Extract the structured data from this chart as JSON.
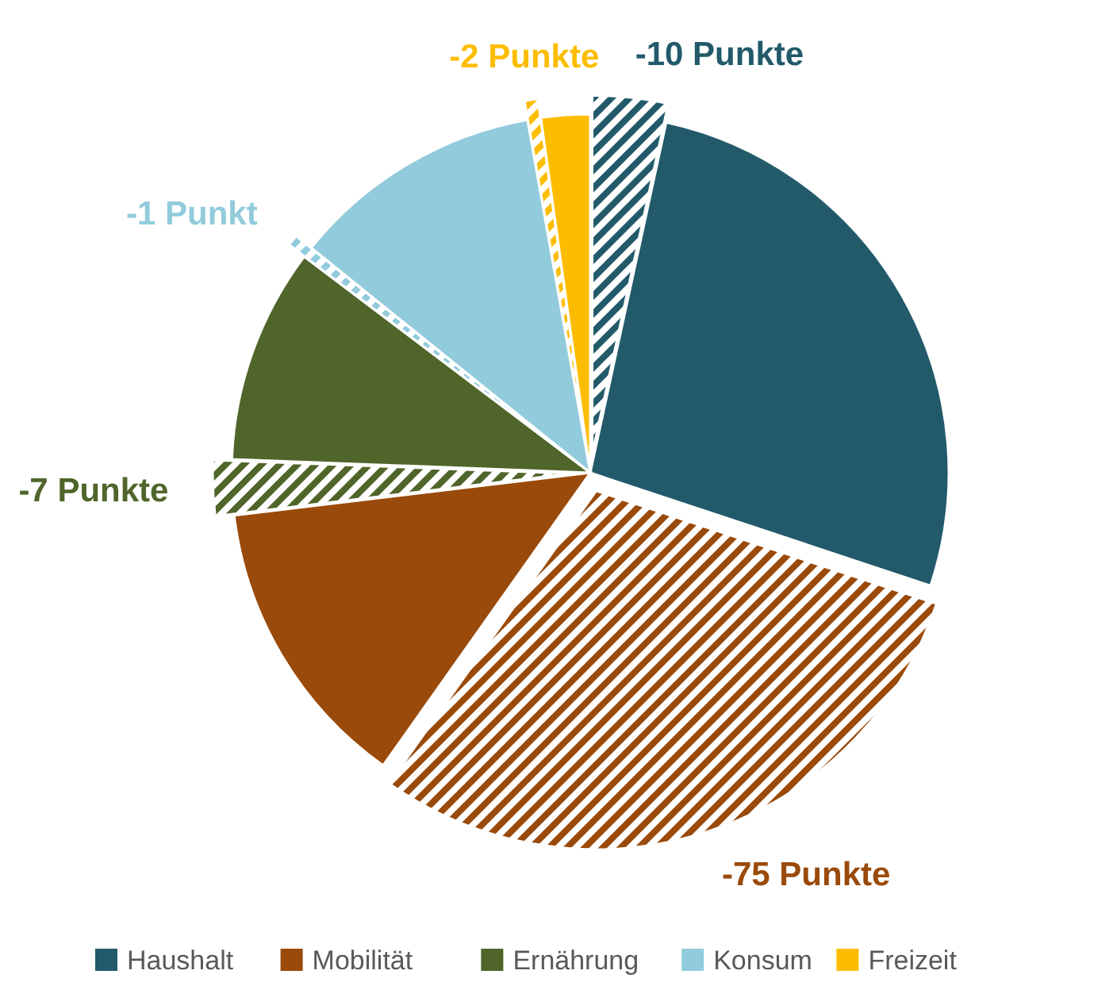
{
  "chart_data": {
    "type": "pie",
    "categories": [
      null,
      "Haushalt",
      null,
      "Mobilität",
      null,
      "Ernährung",
      null,
      "Konsum",
      null,
      "Freizeit"
    ],
    "values": [
      3.4,
      26.7,
      29.7,
      13.3,
      2.5,
      9.7,
      0.5,
      11.4,
      0.6,
      2.2
    ],
    "colors": [
      "#225a6a",
      "#225a6a",
      "#9a4a0a",
      "#9a4a0a",
      "#50652a",
      "#50652a",
      "#92cbdc",
      "#92cbdc",
      "#fcbd00",
      "#fcbd00"
    ],
    "annotations": [
      "-10 Punkte",
      "-75 Punkte",
      "-7 Punkte",
      "-1 Punkt",
      "-2 Punkte"
    ],
    "legend": "bottom"
  }
}
